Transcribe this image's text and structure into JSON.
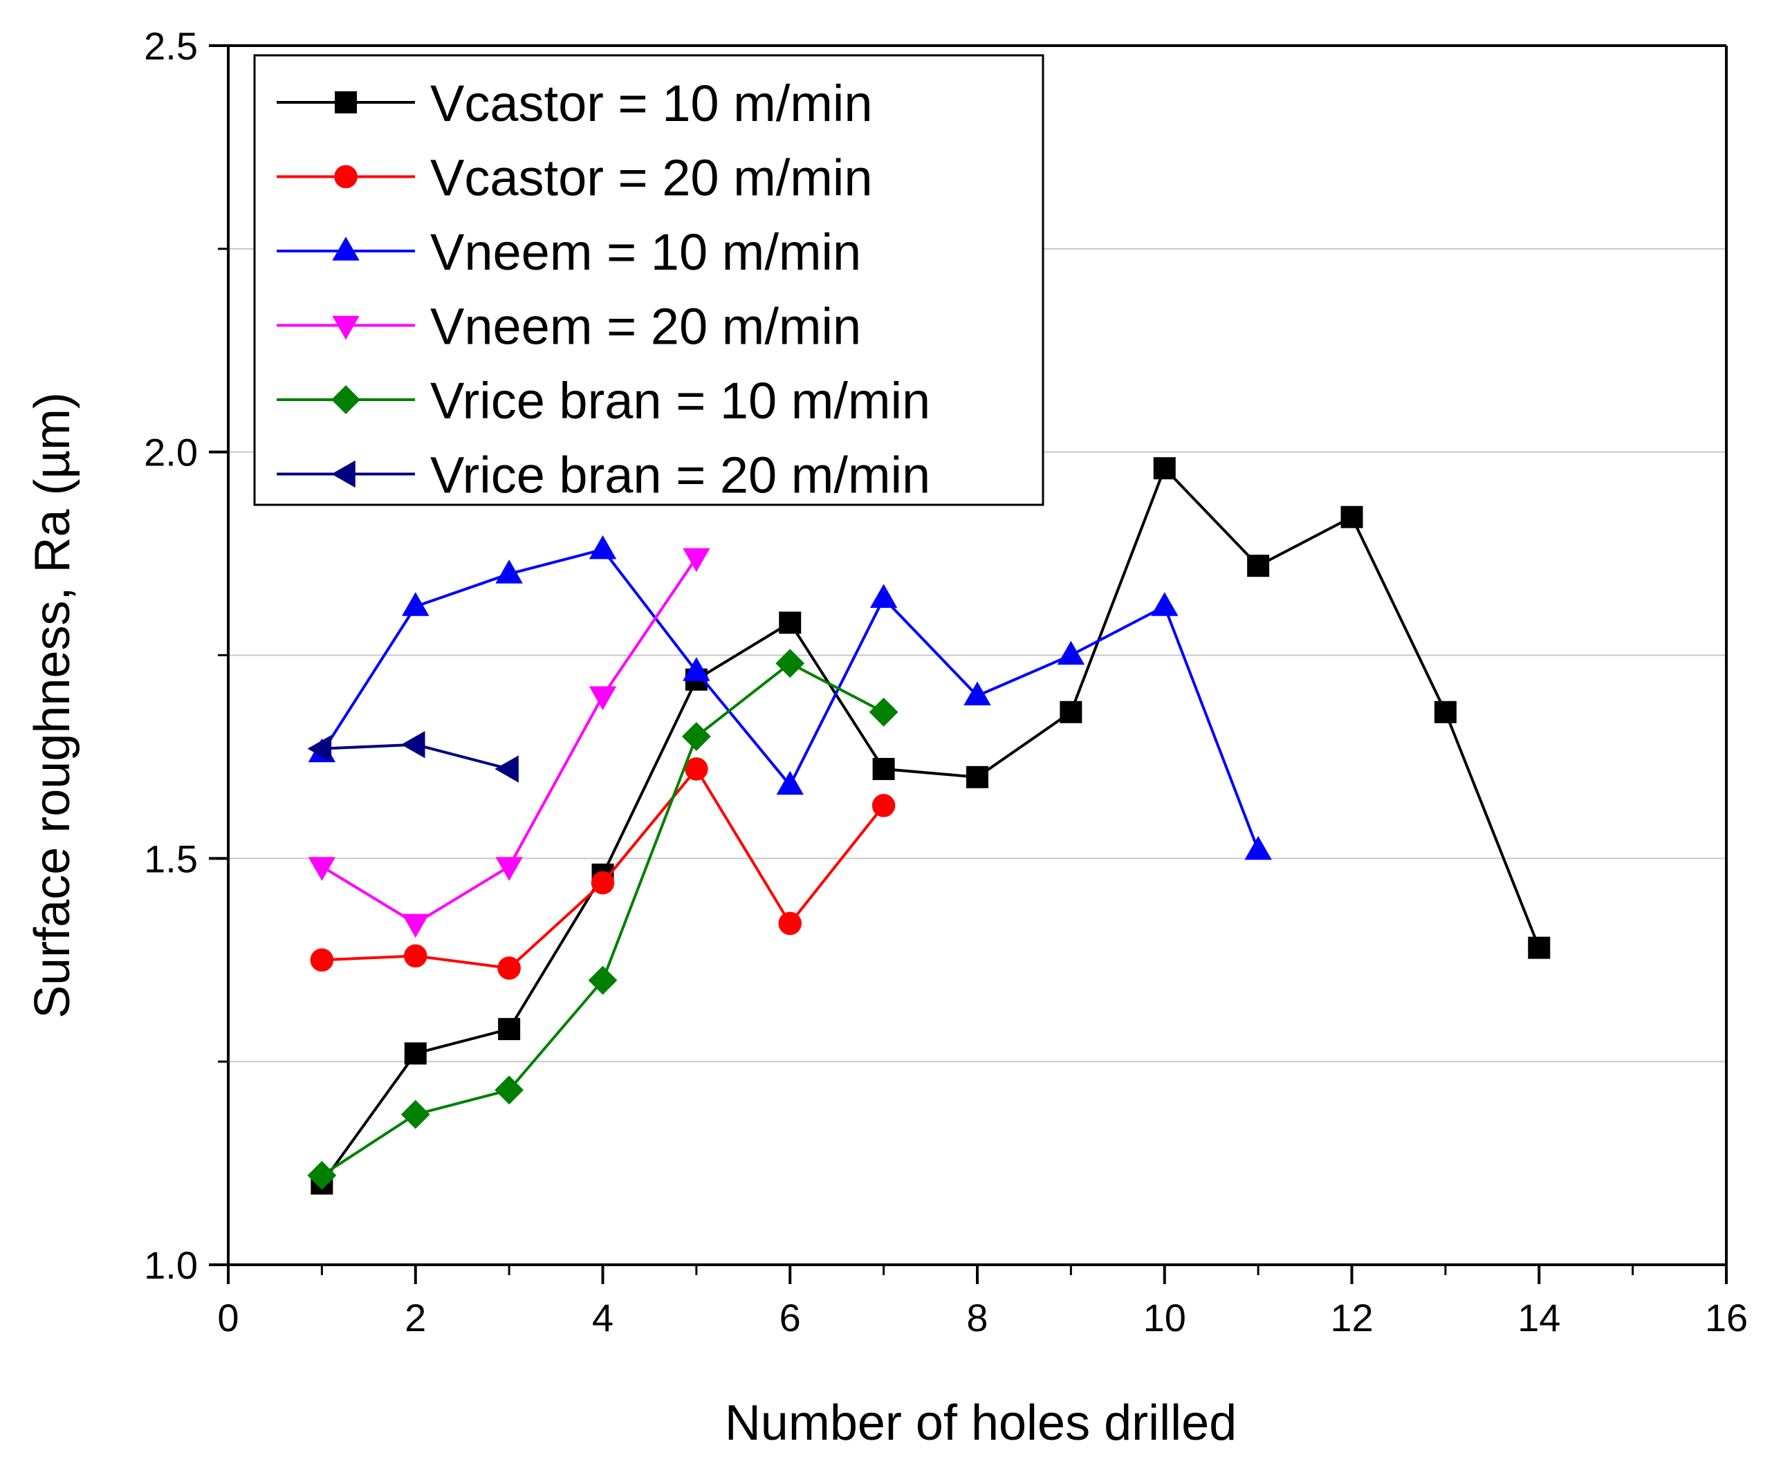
{
  "chart_data": {
    "type": "line",
    "title": "",
    "xlabel": "Number of holes drilled",
    "ylabel": "Surface roughness, Ra (µm)",
    "xlim": [
      0,
      16
    ],
    "ylim": [
      1.0,
      2.5
    ],
    "x_ticks": [
      0,
      2,
      4,
      6,
      8,
      10,
      12,
      14,
      16
    ],
    "x_tick_labels": [
      "0",
      "2",
      "4",
      "6",
      "8",
      "10",
      "12",
      "14",
      "16"
    ],
    "y_ticks": [
      1.0,
      1.5,
      2.0,
      2.5
    ],
    "y_tick_labels": [
      "1.0",
      "1.5",
      "2.0",
      "2.5"
    ],
    "y_minor_ticks": [
      1.25,
      1.75,
      2.25
    ],
    "x_minor_ticks": [
      1,
      3,
      5,
      7,
      9,
      11,
      13,
      15
    ],
    "gridlines_y": [
      1.25,
      1.5,
      1.75,
      2.0,
      2.25
    ],
    "legend_position": "top-left",
    "series": [
      {
        "name": "Vcastor = 10 m/min",
        "color": "#000000",
        "marker": "square",
        "x": [
          1,
          2,
          3,
          4,
          5,
          6,
          7,
          8,
          9,
          10,
          11,
          12,
          13,
          14
        ],
        "y": [
          1.1,
          1.26,
          1.29,
          1.48,
          1.72,
          1.79,
          1.61,
          1.6,
          1.68,
          1.98,
          1.86,
          1.92,
          1.68,
          1.39
        ]
      },
      {
        "name": "Vcastor = 20 m/min",
        "color": "#ff0000",
        "marker": "circle",
        "x": [
          1,
          2,
          3,
          4,
          5,
          6,
          7
        ],
        "y": [
          1.375,
          1.38,
          1.365,
          1.47,
          1.61,
          1.42,
          1.565
        ]
      },
      {
        "name": "Vneem = 10 m/min",
        "color": "#0000ff",
        "marker": "triangle-up",
        "x": [
          1,
          2,
          3,
          4,
          5,
          6,
          7,
          8,
          9,
          10,
          11
        ],
        "y": [
          1.63,
          1.81,
          1.85,
          1.88,
          1.73,
          1.59,
          1.82,
          1.7,
          1.75,
          1.81,
          1.51
        ]
      },
      {
        "name": "Vneem = 20 m/min",
        "color": "#ff00ff",
        "marker": "triangle-down",
        "x": [
          1,
          2,
          3,
          4,
          5
        ],
        "y": [
          1.49,
          1.42,
          1.49,
          1.7,
          1.87
        ]
      },
      {
        "name": "Vrice bran = 10 m/min",
        "color": "#008000",
        "marker": "diamond",
        "x": [
          1,
          2,
          3,
          4,
          5,
          6,
          7
        ],
        "y": [
          1.11,
          1.185,
          1.215,
          1.35,
          1.65,
          1.74,
          1.68
        ]
      },
      {
        "name": "Vrice bran = 20 m/min",
        "color": "#000080",
        "marker": "triangle-left",
        "x": [
          1,
          2,
          3
        ],
        "y": [
          1.635,
          1.64,
          1.61
        ]
      }
    ]
  }
}
